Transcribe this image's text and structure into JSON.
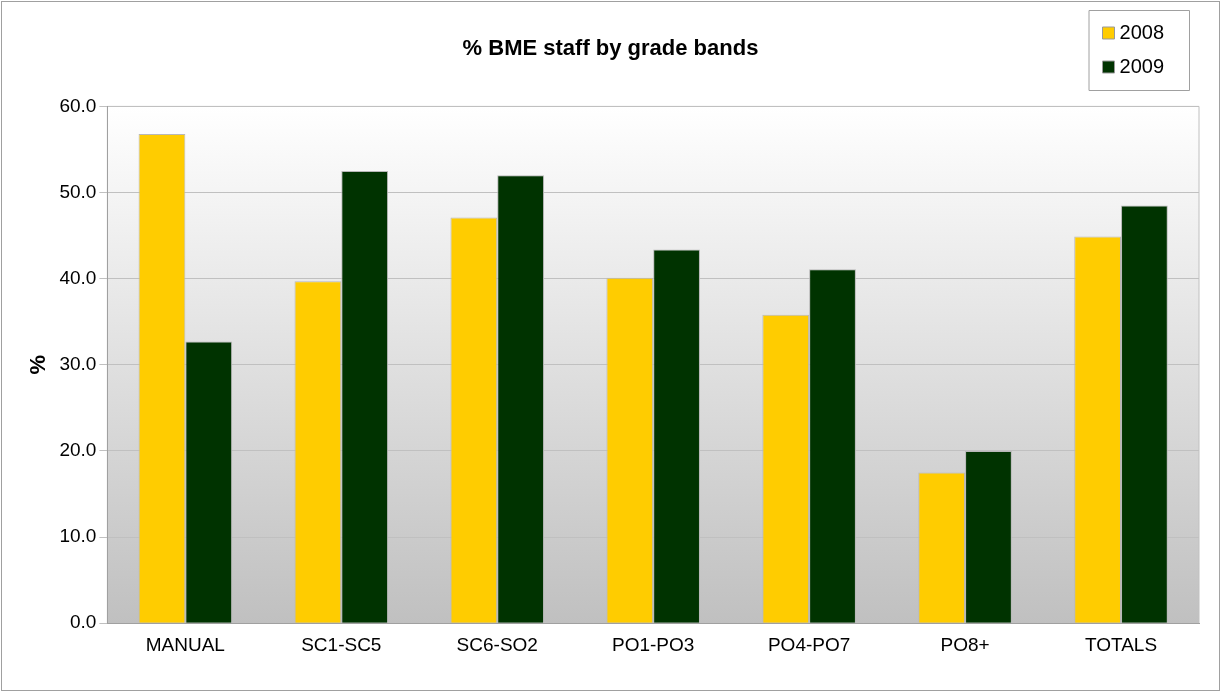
{
  "chart_data": {
    "type": "bar",
    "title": "% BME staff by grade bands",
    "ylabel": "%",
    "categories": [
      "MANUAL",
      "SC1-SC5",
      "SC6-SO2",
      "PO1-PO3",
      "PO4-PO7",
      "PO8+",
      "TOTALS"
    ],
    "series": [
      {
        "name": "2008",
        "color": "#ffcc00",
        "values": [
          56.8,
          39.7,
          47.1,
          40.1,
          35.8,
          17.5,
          44.9
        ]
      },
      {
        "name": "2009",
        "color": "#003300",
        "values": [
          32.7,
          52.5,
          52.0,
          43.4,
          41.1,
          20.0,
          48.5
        ]
      }
    ],
    "ylim": [
      0,
      60
    ],
    "yticks": [
      {
        "value": 0,
        "label": "0.0"
      },
      {
        "value": 10,
        "label": "10.0"
      },
      {
        "value": 20,
        "label": "20.0"
      },
      {
        "value": 30,
        "label": "30.0"
      },
      {
        "value": 40,
        "label": "40.0"
      },
      {
        "value": 50,
        "label": "50.0"
      },
      {
        "value": 60,
        "label": "60.0"
      }
    ],
    "grid": "y",
    "legend": "top right"
  }
}
